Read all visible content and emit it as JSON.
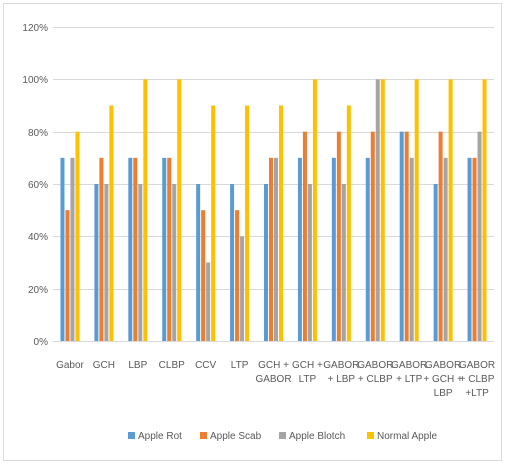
{
  "chart_data": {
    "type": "bar",
    "title": "",
    "xlabel": "",
    "ylabel": "",
    "ylim": [
      0,
      120
    ],
    "ytick_values": [
      0,
      20,
      40,
      60,
      80,
      100,
      120
    ],
    "ytick_labels": [
      "0%",
      "20%",
      "40%",
      "60%",
      "80%",
      "100%",
      "120%"
    ],
    "grid": "horizontal",
    "legend_position": "bottom",
    "categories": [
      [
        "Gabor"
      ],
      [
        "GCH"
      ],
      [
        "LBP"
      ],
      [
        "CLBP"
      ],
      [
        "CCV"
      ],
      [
        "LTP"
      ],
      [
        "GCH +",
        "GABOR"
      ],
      [
        "GCH +",
        "LTP"
      ],
      [
        "GABOR",
        "+ LBP"
      ],
      [
        "GABOR",
        "+ CLBP"
      ],
      [
        "GABOR",
        "+ LTP"
      ],
      [
        "GABOR",
        "+ GCH +",
        "LBP"
      ],
      [
        "GABOR",
        "+ CLBP",
        "+LTP"
      ]
    ],
    "series": [
      {
        "name": "Apple Rot",
        "color": "#5b9bd5",
        "values": [
          70,
          60,
          70,
          70,
          60,
          60,
          60,
          70,
          70,
          70,
          80,
          60,
          70
        ]
      },
      {
        "name": "Apple Scab",
        "color": "#ed7d31",
        "values": [
          50,
          70,
          70,
          70,
          50,
          50,
          70,
          80,
          80,
          80,
          80,
          80,
          70
        ]
      },
      {
        "name": "Apple Blotch",
        "color": "#a5a5a5",
        "values": [
          70,
          60,
          60,
          60,
          30,
          40,
          70,
          60,
          60,
          100,
          70,
          70,
          80
        ]
      },
      {
        "name": "Normal Apple",
        "color": "#ffc000",
        "values": [
          80,
          90,
          100,
          100,
          90,
          90,
          90,
          100,
          90,
          100,
          100,
          100,
          100
        ]
      }
    ]
  }
}
